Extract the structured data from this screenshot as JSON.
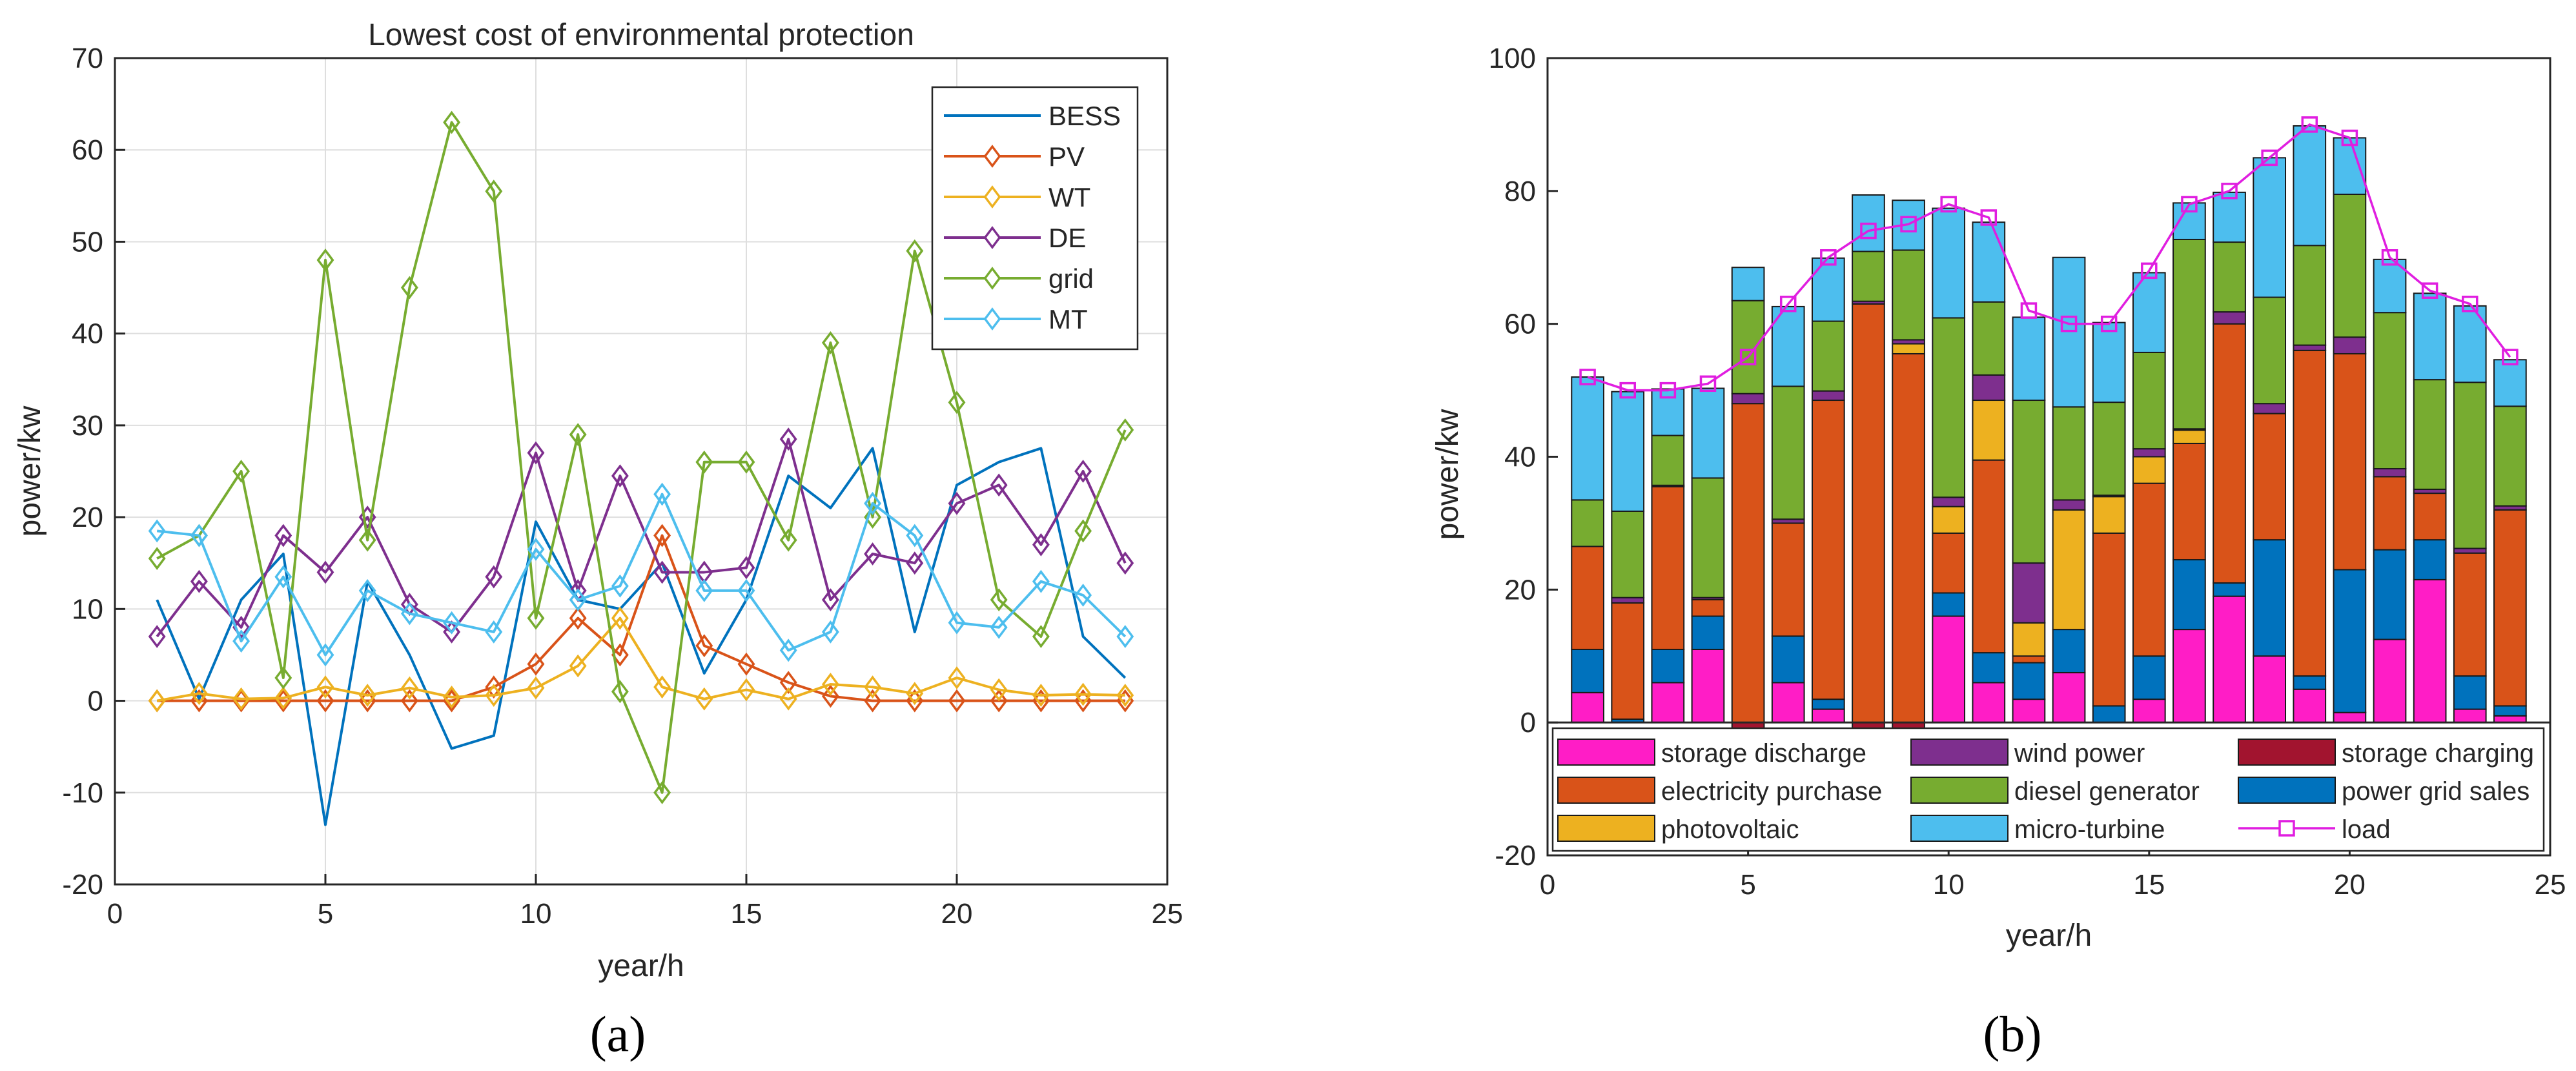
{
  "colors": {
    "BESS": "#0072BD",
    "PV": "#D95319",
    "WT": "#EDB120",
    "DE": "#7E2F8E",
    "grid": "#77AC30",
    "MT": "#4DBEEE",
    "storage_discharge": "#FF1DC6",
    "wind_power": "#7E2F8E",
    "storage_charging": "#A2142F",
    "electricity_purchase": "#D95319",
    "diesel_generator": "#77AC30",
    "power_grid_sales": "#0072BD",
    "photovoltaic": "#EDB120",
    "micro_turbine": "#4DBEEE",
    "load": "#E01EE0"
  },
  "chart_data": [
    {
      "type": "line",
      "panel_label": "(a)",
      "title": "Lowest cost of environmental protection",
      "xlabel": "year/h",
      "ylabel": "power/kw",
      "xlim": [
        0,
        25
      ],
      "ylim": [
        -20,
        70
      ],
      "xticks": [
        0,
        5,
        10,
        15,
        20,
        25
      ],
      "yticks": [
        -20,
        -10,
        0,
        10,
        20,
        30,
        40,
        50,
        60,
        70
      ],
      "grid": true,
      "legend_position": "top-right",
      "x": [
        1,
        2,
        3,
        4,
        5,
        6,
        7,
        8,
        9,
        10,
        11,
        12,
        13,
        14,
        15,
        16,
        17,
        18,
        19,
        20,
        21,
        22,
        23,
        24
      ],
      "series": [
        {
          "name": "BESS",
          "marker": "none",
          "values": [
            11,
            0.2,
            11,
            16,
            -13.5,
            13,
            5,
            -5.2,
            -3.8,
            19.5,
            11,
            10,
            15,
            3,
            11,
            24.5,
            21,
            27.5,
            7.5,
            23.5,
            26,
            27.5,
            7,
            2.5
          ]
        },
        {
          "name": "PV",
          "marker": "diamond",
          "values": [
            0,
            0,
            0,
            0,
            0,
            0,
            0,
            0,
            1.5,
            4,
            9,
            5,
            18,
            6,
            4,
            2,
            0.5,
            0,
            0,
            0,
            0,
            0,
            0,
            0
          ]
        },
        {
          "name": "WT",
          "marker": "diamond",
          "values": [
            0,
            0.8,
            0.2,
            0.3,
            1.5,
            0.6,
            1.4,
            0.4,
            0.6,
            1.4,
            3.8,
            9,
            1.5,
            0.2,
            1.2,
            0.2,
            1.8,
            1.5,
            0.8,
            2.5,
            1.2,
            0.6,
            0.7,
            0.6
          ]
        },
        {
          "name": "DE",
          "marker": "diamond",
          "values": [
            7,
            13,
            8,
            18,
            14,
            20,
            10.5,
            7.5,
            13.5,
            27,
            12,
            24.5,
            14,
            14,
            14.5,
            28.5,
            11,
            16,
            15,
            21.5,
            23.5,
            17,
            25,
            15
          ]
        },
        {
          "name": "grid",
          "marker": "diamond",
          "values": [
            15.5,
            18,
            25,
            2.5,
            48,
            17.5,
            45,
            63,
            55.5,
            9,
            29,
            1,
            -10,
            26,
            26,
            17.5,
            39,
            20,
            49,
            32.5,
            11,
            7,
            18.5,
            29.5
          ]
        },
        {
          "name": "MT",
          "marker": "diamond",
          "values": [
            18.5,
            18,
            6.5,
            13.5,
            5,
            12,
            9.5,
            8.5,
            7.5,
            16.5,
            11,
            12.5,
            22.5,
            12,
            12,
            5.5,
            7.5,
            21.5,
            18,
            8.5,
            8,
            13,
            11.5,
            7
          ]
        }
      ]
    },
    {
      "type": "bar",
      "stacked": true,
      "panel_label": "(b)",
      "xlabel": "year/h",
      "ylabel": "power/kw",
      "xlim": [
        0,
        25
      ],
      "ylim": [
        -20,
        100
      ],
      "xticks": [
        0,
        5,
        10,
        15,
        20,
        25
      ],
      "yticks": [
        -20,
        0,
        20,
        40,
        60,
        80,
        100
      ],
      "legend_position": "bottom-inside",
      "categories": [
        1,
        2,
        3,
        4,
        5,
        6,
        7,
        8,
        9,
        10,
        11,
        12,
        13,
        14,
        15,
        16,
        17,
        18,
        19,
        20,
        21,
        22,
        23,
        24
      ],
      "series": [
        {
          "key": "storage_discharge",
          "name": "storage discharge",
          "values": [
            4.5,
            0,
            6,
            11,
            0,
            6,
            2,
            0,
            0,
            16,
            6,
            3.5,
            7.5,
            0,
            3.5,
            14,
            19,
            10,
            5,
            1.5,
            12.5,
            21.5,
            2,
            1
          ]
        },
        {
          "key": "power_grid_sales",
          "name": "power grid sales",
          "values": [
            6.5,
            0.5,
            5,
            5,
            0,
            7,
            1.5,
            0,
            0,
            3.5,
            4.5,
            5.5,
            6.5,
            2.5,
            6.5,
            10.5,
            2,
            17.5,
            2,
            21.5,
            13.5,
            6,
            5,
            1.5
          ]
        },
        {
          "key": "electricity_purchase",
          "name": "electricity purchase",
          "values": [
            15.5,
            17.5,
            24.5,
            2.5,
            48,
            17,
            45,
            63,
            55.5,
            9,
            29,
            1,
            0,
            26,
            26,
            17.5,
            39,
            19,
            49,
            32.5,
            11,
            7,
            18.5,
            29.5
          ]
        },
        {
          "key": "photovoltaic",
          "name": "photovoltaic",
          "values": [
            0,
            0,
            0,
            0,
            0,
            0,
            0,
            0,
            1.5,
            4,
            9,
            5,
            18,
            5.5,
            4,
            2,
            0,
            0,
            0,
            0,
            0,
            0,
            0,
            0
          ]
        },
        {
          "key": "wind_power",
          "name": "wind power",
          "values": [
            0,
            0.8,
            0.2,
            0.3,
            1.5,
            0.6,
            1.4,
            0.4,
            0.6,
            1.4,
            3.8,
            9,
            1.5,
            0.2,
            1.2,
            0.2,
            1.8,
            1.5,
            0.8,
            2.5,
            1.2,
            0.6,
            0.7,
            0.6
          ]
        },
        {
          "key": "diesel_generator",
          "name": "diesel generator",
          "values": [
            7,
            13,
            7.5,
            18,
            14,
            20,
            10.5,
            7.5,
            13.5,
            27,
            11,
            24.5,
            14,
            14,
            14.5,
            28.5,
            10.5,
            16,
            15,
            21.5,
            23.5,
            16.5,
            25,
            15
          ]
        },
        {
          "key": "micro_turbine",
          "name": "micro-turbine",
          "values": [
            18.5,
            18,
            7,
            13.5,
            5,
            12,
            9.5,
            8.5,
            7.5,
            16.5,
            12,
            12.5,
            22.5,
            12,
            12,
            5.5,
            7.5,
            21,
            18,
            8.5,
            8,
            13,
            11.5,
            7
          ]
        },
        {
          "key": "storage_charging",
          "name": "storage charging",
          "values": [
            0,
            0,
            0,
            0,
            -1.5,
            0,
            0,
            -1,
            -1,
            0,
            0,
            0,
            0,
            0,
            0,
            0,
            0,
            0,
            0,
            0,
            0,
            0,
            0,
            0
          ]
        }
      ],
      "load": {
        "name": "load",
        "values": [
          52,
          50,
          50,
          51,
          55,
          63,
          70,
          74,
          75,
          78,
          76,
          62,
          60,
          60,
          68,
          78,
          80,
          85,
          90,
          88,
          70,
          65,
          63,
          55
        ]
      },
      "legend_order": [
        "storage_discharge",
        "wind_power",
        "storage_charging",
        "electricity_purchase",
        "diesel_generator",
        "power_grid_sales",
        "photovoltaic",
        "micro_turbine",
        "load"
      ]
    }
  ]
}
